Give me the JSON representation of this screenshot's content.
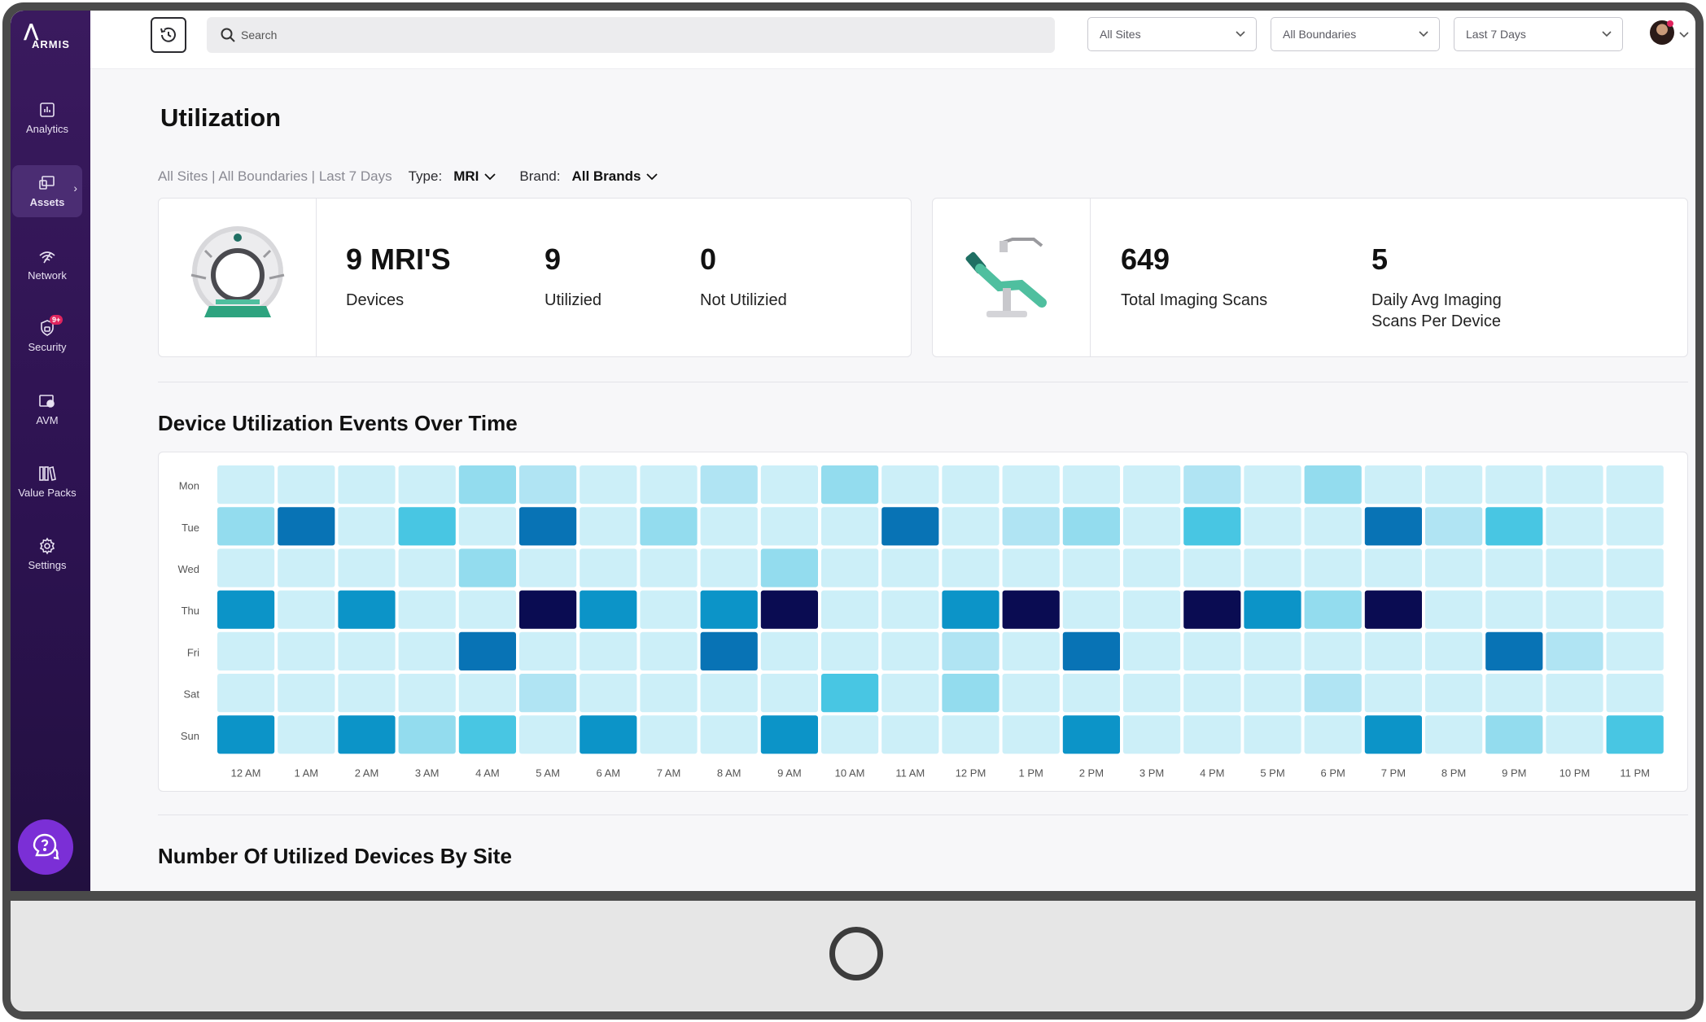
{
  "app": {
    "logo_text": "ARMIS"
  },
  "sidebar": {
    "items": [
      {
        "label": "Analytics",
        "icon": "analytics-icon"
      },
      {
        "label": "Assets",
        "icon": "assets-icon"
      },
      {
        "label": "Network",
        "icon": "network-icon"
      },
      {
        "label": "Security",
        "icon": "security-icon",
        "badge": "9+"
      },
      {
        "label": "AVM",
        "icon": "avm-icon"
      },
      {
        "label": "Value Packs",
        "icon": "value-packs-icon"
      },
      {
        "label": "Settings",
        "icon": "gear-icon"
      }
    ]
  },
  "topbar": {
    "search_placeholder": "Search",
    "sites": "All Sites",
    "boundaries": "All Boundaries",
    "range": "Last 7 Days"
  },
  "page": {
    "title": "Utilization",
    "context": "All Sites | All Boundaries | Last 7 Days",
    "type_label": "Type:",
    "type_value": "MRI",
    "brand_label": "Brand:",
    "brand_value": "All Brands"
  },
  "cards": {
    "devices": {
      "count": "9 MRI'S",
      "count_caption": "Devices",
      "utilized": "9",
      "utilized_caption": "Utilizied",
      "not_utilized": "0",
      "not_utilized_caption": "Not Utilizied"
    },
    "scans": {
      "total": "649",
      "total_caption": "Total Imaging Scans",
      "daily_avg": "5",
      "daily_avg_caption_1": "Daily Avg Imaging",
      "daily_avg_caption_2": "Scans Per Device"
    }
  },
  "sections": {
    "heatmap_title": "Device Utilization Events Over Time",
    "by_site_title": "Number Of Utilized Devices By Site"
  },
  "chart_data": {
    "type": "heatmap",
    "title": "Device Utilization Events Over Time",
    "y_categories": [
      "Mon",
      "Tue",
      "Wed",
      "Thu",
      "Fri",
      "Sat",
      "Sun"
    ],
    "x_categories": [
      "12 AM",
      "1 AM",
      "2 AM",
      "3 AM",
      "4 AM",
      "5 AM",
      "6 AM",
      "7 AM",
      "8 AM",
      "9 AM",
      "10 AM",
      "11 AM",
      "12 PM",
      "1 PM",
      "2 PM",
      "3 PM",
      "4 PM",
      "5 PM",
      "6 PM",
      "7 PM",
      "8 PM",
      "9 PM",
      "10 PM",
      "11 PM"
    ],
    "levels": [
      [
        0,
        0,
        0,
        0,
        2,
        1,
        0,
        0,
        1,
        0,
        2,
        0,
        0,
        0,
        0,
        0,
        1,
        0,
        2,
        0,
        0,
        0,
        0,
        0
      ],
      [
        2,
        5,
        0,
        3,
        0,
        5,
        0,
        2,
        0,
        0,
        0,
        5,
        0,
        1,
        2,
        0,
        3,
        0,
        0,
        5,
        1,
        3,
        0,
        0
      ],
      [
        0,
        0,
        0,
        0,
        2,
        0,
        0,
        0,
        0,
        2,
        0,
        0,
        0,
        0,
        0,
        0,
        0,
        0,
        0,
        0,
        0,
        0,
        0,
        0
      ],
      [
        4,
        0,
        4,
        0,
        0,
        6,
        4,
        0,
        4,
        6,
        0,
        0,
        4,
        6,
        0,
        0,
        6,
        4,
        2,
        6,
        0,
        0,
        0,
        0
      ],
      [
        0,
        0,
        0,
        0,
        5,
        0,
        0,
        0,
        5,
        0,
        0,
        0,
        1,
        0,
        5,
        0,
        0,
        0,
        0,
        0,
        0,
        5,
        1,
        0
      ],
      [
        0,
        0,
        0,
        0,
        0,
        1,
        0,
        0,
        0,
        0,
        3,
        0,
        2,
        0,
        0,
        0,
        0,
        0,
        1,
        0,
        0,
        0,
        0,
        0
      ],
      [
        4,
        0,
        4,
        2,
        3,
        0,
        4,
        0,
        0,
        4,
        0,
        0,
        0,
        0,
        4,
        0,
        0,
        0,
        0,
        4,
        0,
        2,
        0,
        3
      ]
    ],
    "level_scale": "0 = lowest utilization, 6 = highest",
    "colors": [
      "#cceff8",
      "#b0e4f3",
      "#93dcee",
      "#48c6e3",
      "#0c94c8",
      "#0873b5",
      "#0a0c52"
    ],
    "legend": "none",
    "grid": false
  }
}
